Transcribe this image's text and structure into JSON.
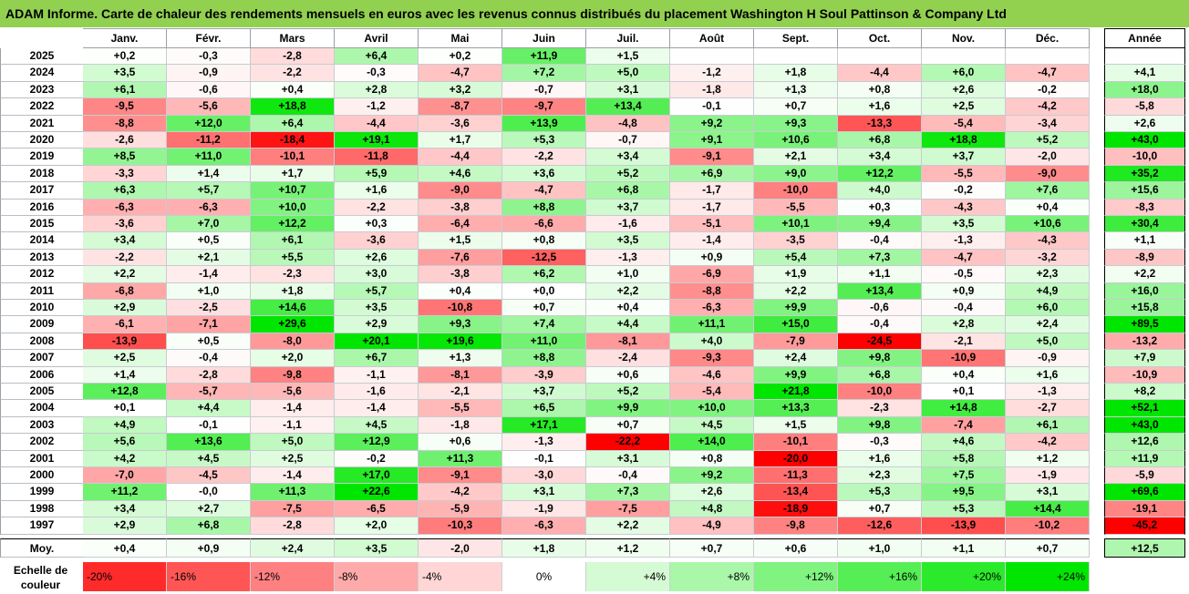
{
  "title": "ADAM Informe. Carte de chaleur des rendements mensuels en euros avec les revenus connus distribués du placement Washington H Soul Pattinson & Company Ltd",
  "colors": {
    "title_bg": "#92d050",
    "negative_max": "#ff0000",
    "positive_max": "#00e000",
    "neutral": "#ffffff"
  },
  "chart_data": {
    "type": "heatmap",
    "months": [
      "Janv.",
      "Févr.",
      "Mars",
      "Avril",
      "Mai",
      "Juin",
      "Juil.",
      "Août",
      "Sept.",
      "Oct.",
      "Nov.",
      "Déc."
    ],
    "annual_header": "Année",
    "average_label": "Moy.",
    "rows": [
      {
        "year": "2025",
        "values": [
          "+0,2",
          "-0,3",
          "-2,8",
          "+6,4",
          "+0,2",
          "+11,9",
          "+1,5",
          "",
          "",
          "",
          "",
          ""
        ],
        "annual": ""
      },
      {
        "year": "2024",
        "values": [
          "+3,5",
          "-0,9",
          "-2,2",
          "-0,3",
          "-4,7",
          "+7,2",
          "+5,0",
          "-1,2",
          "+1,8",
          "-4,4",
          "+6,0",
          "-4,7"
        ],
        "annual": "+4,1"
      },
      {
        "year": "2023",
        "values": [
          "+6,1",
          "-0,6",
          "+0,4",
          "+2,8",
          "+3,2",
          "-0,7",
          "+3,1",
          "-1,8",
          "+1,3",
          "+0,8",
          "+2,6",
          "-0,2"
        ],
        "annual": "+18,0"
      },
      {
        "year": "2022",
        "values": [
          "-9,5",
          "-5,6",
          "+18,8",
          "-1,2",
          "-8,7",
          "-9,7",
          "+13,4",
          "-0,1",
          "+0,7",
          "+1,6",
          "+2,5",
          "-4,2"
        ],
        "annual": "-5,8"
      },
      {
        "year": "2021",
        "values": [
          "-8,8",
          "+12,0",
          "+6,4",
          "-4,4",
          "-3,6",
          "+13,9",
          "-4,8",
          "+9,2",
          "+9,3",
          "-13,3",
          "-5,4",
          "-3,4"
        ],
        "annual": "+2,6"
      },
      {
        "year": "2020",
        "values": [
          "-2,6",
          "-11,2",
          "-18,4",
          "+19,1",
          "+1,7",
          "+5,3",
          "-0,7",
          "+9,1",
          "+10,6",
          "+6,8",
          "+18,8",
          "+5,2"
        ],
        "annual": "+43,0"
      },
      {
        "year": "2019",
        "values": [
          "+8,5",
          "+11,0",
          "-10,1",
          "-11,8",
          "-4,4",
          "-2,2",
          "+3,4",
          "-9,1",
          "+2,1",
          "+3,4",
          "+3,7",
          "-2,0"
        ],
        "annual": "-10,0"
      },
      {
        "year": "2018",
        "values": [
          "-3,3",
          "+1,4",
          "+1,7",
          "+5,9",
          "+4,6",
          "+3,6",
          "+5,2",
          "+6,9",
          "+9,0",
          "+12,2",
          "-5,5",
          "-9,0"
        ],
        "annual": "+35,2"
      },
      {
        "year": "2017",
        "values": [
          "+6,3",
          "+5,7",
          "+10,7",
          "+1,6",
          "-9,0",
          "-4,7",
          "+6,8",
          "-1,7",
          "-10,0",
          "+4,0",
          "-0,2",
          "+7,6"
        ],
        "annual": "+15,6"
      },
      {
        "year": "2016",
        "values": [
          "-6,3",
          "-6,3",
          "+10,0",
          "-2,2",
          "-3,8",
          "+8,8",
          "+3,7",
          "-1,7",
          "-5,5",
          "+0,3",
          "-4,3",
          "+0,4"
        ],
        "annual": "-8,3"
      },
      {
        "year": "2015",
        "values": [
          "-3,6",
          "+7,0",
          "+12,2",
          "+0,3",
          "-6,4",
          "-6,6",
          "-1,6",
          "-5,1",
          "+10,1",
          "+9,4",
          "+3,5",
          "+10,6"
        ],
        "annual": "+30,4"
      },
      {
        "year": "2014",
        "values": [
          "+3,4",
          "+0,5",
          "+6,1",
          "-3,6",
          "+1,5",
          "+0,8",
          "+3,5",
          "-1,4",
          "-3,5",
          "-0,4",
          "-1,3",
          "-4,3"
        ],
        "annual": "+1,1"
      },
      {
        "year": "2013",
        "values": [
          "-2,2",
          "+2,1",
          "+5,5",
          "+2,6",
          "-7,6",
          "-12,5",
          "-1,3",
          "+0,9",
          "+5,4",
          "+7,3",
          "-4,7",
          "-3,2"
        ],
        "annual": "-8,9"
      },
      {
        "year": "2012",
        "values": [
          "+2,2",
          "-1,4",
          "-2,3",
          "+3,0",
          "-3,8",
          "+6,2",
          "+1,0",
          "-6,9",
          "+1,9",
          "+1,1",
          "-0,5",
          "+2,3"
        ],
        "annual": "+2,2"
      },
      {
        "year": "2011",
        "values": [
          "-6,8",
          "+1,0",
          "+1,8",
          "+5,7",
          "+0,4",
          "+0,0",
          "+2,2",
          "-8,8",
          "+2,2",
          "+13,4",
          "+0,9",
          "+4,9"
        ],
        "annual": "+16,0"
      },
      {
        "year": "2010",
        "values": [
          "+2,9",
          "-2,5",
          "+14,6",
          "+3,5",
          "-10,8",
          "+0,7",
          "+0,4",
          "-6,3",
          "+9,9",
          "-0,6",
          "-0,4",
          "+6,0"
        ],
        "annual": "+15,8"
      },
      {
        "year": "2009",
        "values": [
          "-6,1",
          "-7,1",
          "+29,6",
          "+2,9",
          "+9,3",
          "+7,4",
          "+4,4",
          "+11,1",
          "+15,0",
          "-0,4",
          "+2,8",
          "+2,4"
        ],
        "annual": "+89,5"
      },
      {
        "year": "2008",
        "values": [
          "-13,9",
          "+0,5",
          "-8,0",
          "+20,1",
          "+19,6",
          "+11,0",
          "-8,1",
          "+4,0",
          "-7,9",
          "-24,5",
          "-2,1",
          "+5,0"
        ],
        "annual": "-13,2"
      },
      {
        "year": "2007",
        "values": [
          "+2,5",
          "-0,4",
          "+2,0",
          "+6,7",
          "+1,3",
          "+8,8",
          "-2,4",
          "-9,3",
          "+2,4",
          "+9,8",
          "-10,9",
          "-0,9"
        ],
        "annual": "+7,9"
      },
      {
        "year": "2006",
        "values": [
          "+1,4",
          "-2,8",
          "-9,8",
          "-1,1",
          "-8,1",
          "-3,9",
          "+0,6",
          "-4,6",
          "+9,9",
          "+6,8",
          "+0,4",
          "+1,6"
        ],
        "annual": "-10,9"
      },
      {
        "year": "2005",
        "values": [
          "+12,8",
          "-5,7",
          "-5,6",
          "-1,6",
          "-2,1",
          "+3,7",
          "+5,2",
          "-5,4",
          "+21,8",
          "-10,0",
          "+0,1",
          "-1,3"
        ],
        "annual": "+8,2"
      },
      {
        "year": "2004",
        "values": [
          "+0,1",
          "+4,4",
          "-1,4",
          "-1,4",
          "-5,5",
          "+6,5",
          "+9,9",
          "+10,0",
          "+13,3",
          "-2,3",
          "+14,8",
          "-2,7"
        ],
        "annual": "+52,1"
      },
      {
        "year": "2003",
        "values": [
          "+4,9",
          "-0,1",
          "-1,1",
          "+4,5",
          "-1,8",
          "+17,1",
          "+0,7",
          "+4,5",
          "+1,5",
          "+9,8",
          "-7,4",
          "+6,1"
        ],
        "annual": "+43,0"
      },
      {
        "year": "2002",
        "values": [
          "+5,6",
          "+13,6",
          "+5,0",
          "+12,9",
          "+0,6",
          "-1,3",
          "-22,2",
          "+14,0",
          "-10,1",
          "-0,3",
          "+4,6",
          "-4,2"
        ],
        "annual": "+12,6"
      },
      {
        "year": "2001",
        "values": [
          "+4,2",
          "+4,5",
          "+2,5",
          "-0,2",
          "+11,3",
          "-0,1",
          "+3,1",
          "+0,8",
          "-20,0",
          "+1,6",
          "+5,8",
          "+1,2"
        ],
        "annual": "+11,9"
      },
      {
        "year": "2000",
        "values": [
          "-7,0",
          "-4,5",
          "-1,4",
          "+17,0",
          "-9,1",
          "-3,0",
          "-0,4",
          "+9,2",
          "-11,3",
          "+2,3",
          "+7,5",
          "-1,9"
        ],
        "annual": "-5,9"
      },
      {
        "year": "1999",
        "values": [
          "+11,2",
          "-0,0",
          "+11,3",
          "+22,6",
          "-4,2",
          "+3,1",
          "+7,3",
          "+2,6",
          "-13,4",
          "+5,3",
          "+9,5",
          "+3,1"
        ],
        "annual": "+69,6"
      },
      {
        "year": "1998",
        "values": [
          "+3,4",
          "+2,7",
          "-7,5",
          "-6,5",
          "-5,9",
          "-1,9",
          "-7,5",
          "+4,8",
          "-18,9",
          "+0,7",
          "+5,3",
          "+14,4"
        ],
        "annual": "-19,1"
      },
      {
        "year": "1997",
        "values": [
          "+2,9",
          "+6,8",
          "-2,8",
          "+2,0",
          "-10,3",
          "-6,3",
          "+2,2",
          "-4,9",
          "-9,8",
          "-12,6",
          "-13,9",
          "-10,2"
        ],
        "annual": "-45,2"
      }
    ],
    "averages": [
      "+0,4",
      "+0,9",
      "+2,4",
      "+3,5",
      "-2,0",
      "+1,8",
      "+1,2",
      "+0,7",
      "+0,6",
      "+1,0",
      "+1,1",
      "+0,7"
    ],
    "average_annual": "+12,5",
    "scale": {
      "label_line1": "Echelle de",
      "label_line2": "couleur",
      "steps": [
        "-20%",
        "-16%",
        "-12%",
        "-8%",
        "-4%",
        "0%",
        "+4%",
        "+8%",
        "+12%",
        "+16%",
        "+20%",
        "+24%"
      ]
    }
  }
}
